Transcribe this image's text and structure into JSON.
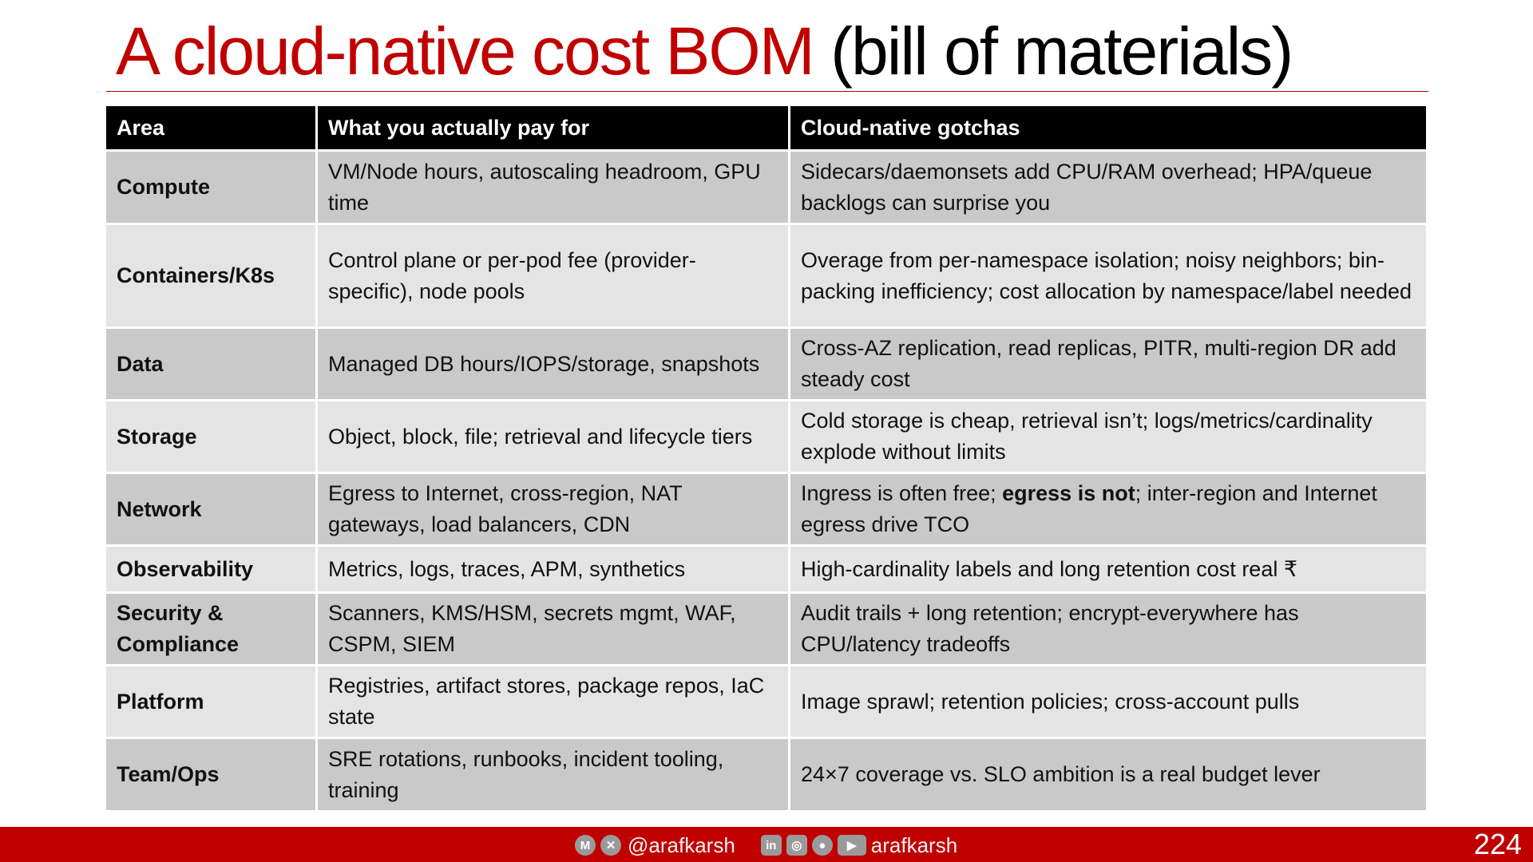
{
  "title": {
    "main": "A cloud-native cost BOM",
    "paren": "(bill of materials)"
  },
  "table": {
    "headers": [
      "Area",
      "What you actually pay for",
      "Cloud-native gotchas"
    ],
    "rows": [
      {
        "area": "Compute",
        "pay": "VM/Node hours, autoscaling headroom, GPU time",
        "gotcha": "Sidecars/daemonsets add CPU/RAM overhead; HPA/queue backlogs can surprise you"
      },
      {
        "area": "Containers/K8s",
        "pay": "Control plane or per-pod fee (provider-specific), node pools",
        "gotcha": "Overage from per-namespace isolation; noisy neighbors; bin-packing inefficiency; cost allocation by namespace/label needed"
      },
      {
        "area": "Data",
        "pay": "Managed DB hours/IOPS/storage, snapshots",
        "gotcha": "Cross-AZ replication, read replicas, PITR, multi-region DR add steady cost"
      },
      {
        "area": "Storage",
        "pay": "Object, block, file; retrieval and lifecycle tiers",
        "gotcha": "Cold storage is cheap, retrieval isn’t; logs/metrics/cardinality explode without limits"
      },
      {
        "area": "Network",
        "pay": "Egress to Internet, cross-region, NAT gateways, load balancers, CDN",
        "gotcha_pre": "Ingress is often free; ",
        "gotcha_bold": "egress is not",
        "gotcha_post": "; inter-region and Internet egress drive TCO"
      },
      {
        "area": "Observability",
        "pay": "Metrics, logs, traces, APM, synthetics",
        "gotcha": "High-cardinality labels and long retention cost real ₹"
      },
      {
        "area": "Security & Compliance",
        "pay": "Scanners, KMS/HSM, secrets mgmt, WAF, CSPM, SIEM",
        "gotcha": "Audit trails + long retention; encrypt-everywhere has CPU/latency tradeoffs"
      },
      {
        "area": "Platform",
        "pay": "Registries, artifact stores, package repos, IaC state",
        "gotcha": "Image sprawl; retention policies; cross-account pulls"
      },
      {
        "area": "Team/Ops",
        "pay": "SRE rotations, runbooks, incident tooling, training",
        "gotcha": "24×7 coverage vs. SLO ambition is a real budget lever"
      }
    ]
  },
  "footer": {
    "handle_primary": "@arafkarsh",
    "handle_secondary": "arafkarsh",
    "page_number": "224",
    "icons_primary": [
      "medium-icon",
      "x-icon"
    ],
    "icons_secondary": [
      "linkedin-icon",
      "instagram-icon",
      "github-icon",
      "youtube-icon"
    ]
  },
  "colors": {
    "accent": "#c00000",
    "header_bg": "#000000",
    "row_dark": "#c9c9c9",
    "row_light": "#e4e4e4"
  }
}
